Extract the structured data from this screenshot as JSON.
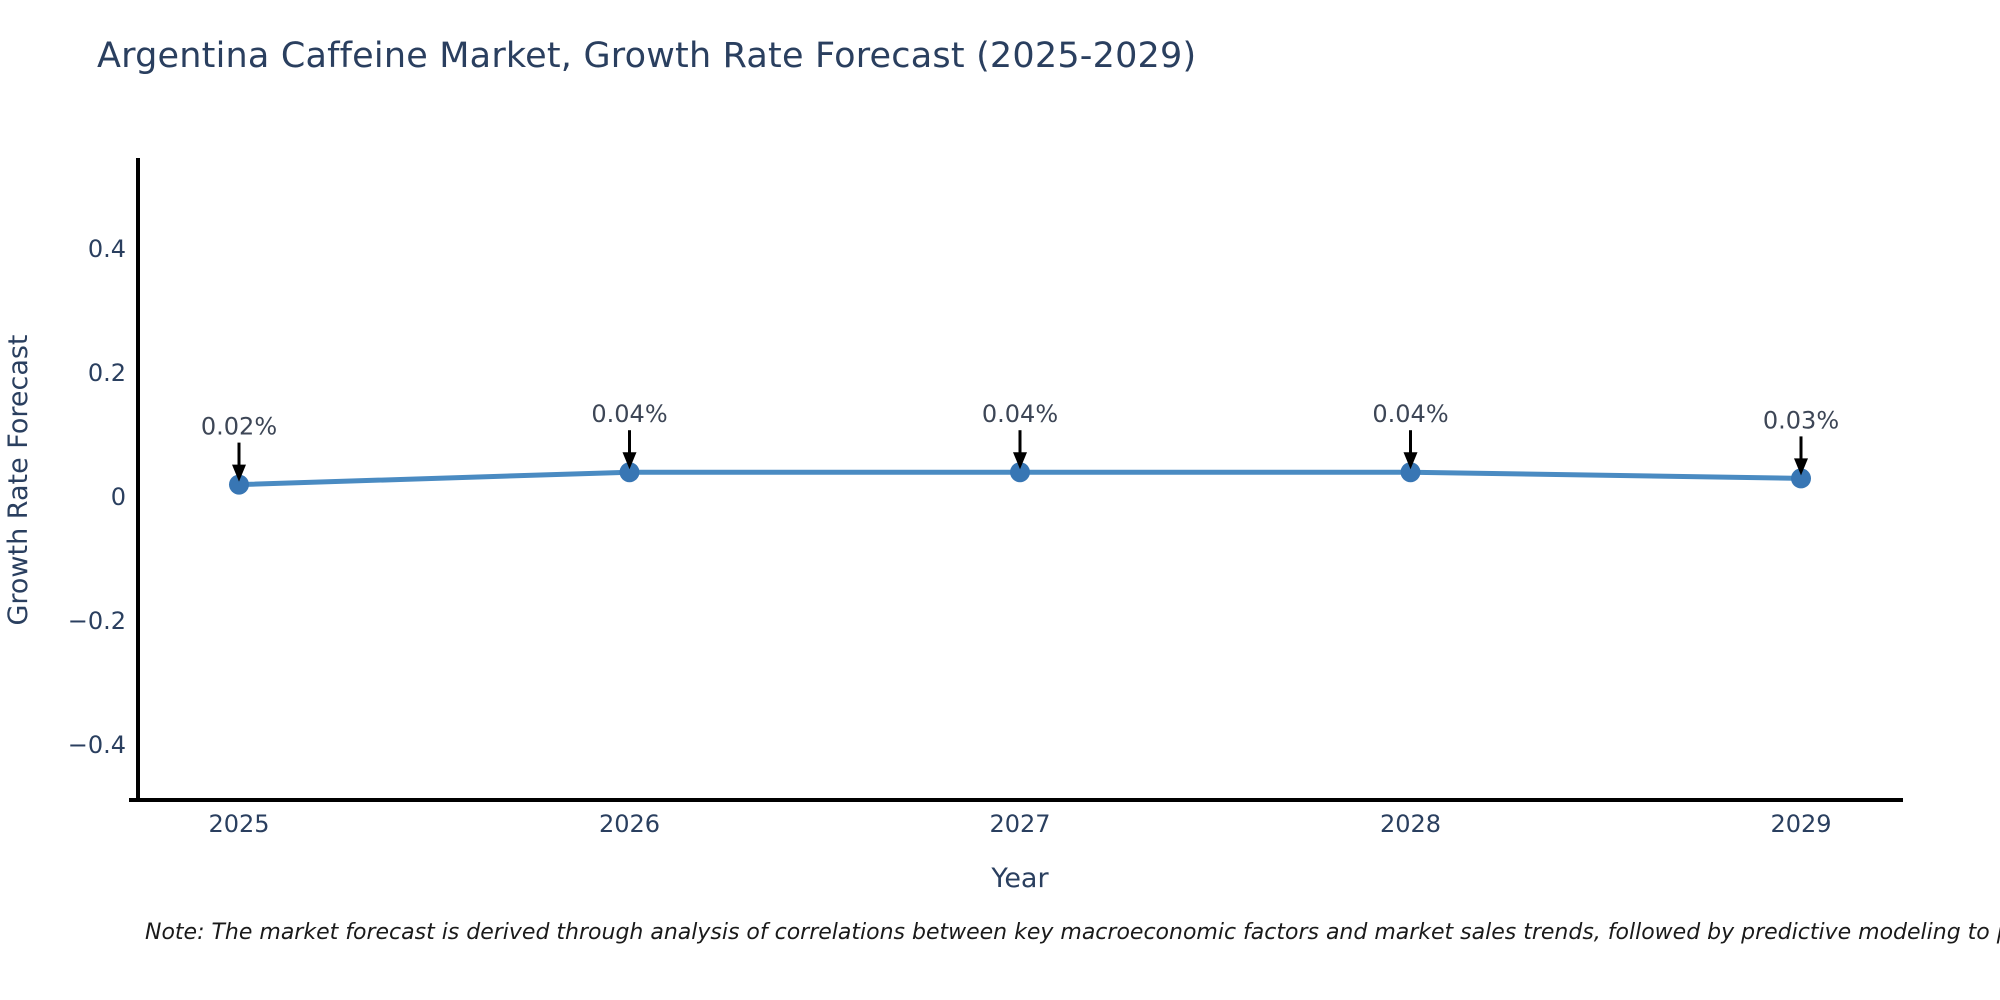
{
  "title": "Argentina Caffeine Market, Growth Rate Forecast (2025-2029)",
  "note": "Note: The market forecast is derived through analysis of correlations between key macroeconomic factors and market sales trends, followed by predictive modeling to project future sa",
  "chart_data": {
    "type": "line",
    "title": "Argentina Caffeine Market, Growth Rate Forecast (2025-2029)",
    "xlabel": "Year",
    "ylabel": "Growth Rate Forecast",
    "x": [
      2025,
      2026,
      2027,
      2028,
      2029
    ],
    "xtick_labels": [
      "2025",
      "2026",
      "2027",
      "2028",
      "2029"
    ],
    "series": [
      {
        "name": "Growth Rate Forecast",
        "values": [
          0.02,
          0.04,
          0.04,
          0.04,
          0.03
        ]
      }
    ],
    "point_labels": [
      "0.02%",
      "0.04%",
      "0.04%",
      "0.04%",
      "0.03%"
    ],
    "yticks": [
      0.4,
      0.2,
      0,
      -0.2,
      -0.4
    ],
    "ytick_labels": [
      "0.4",
      "0.2",
      "0",
      "−0.2",
      "−0.4"
    ],
    "ylim": [
      -0.5,
      0.55
    ],
    "grid": false,
    "legend": "none",
    "line_color": "#4a8bc2",
    "marker_color": "#3876b4",
    "arrow_color": "#000000",
    "text_color": "#2a3f5f",
    "annotation_color": "#3d4656",
    "axis_line_color": "#000000"
  }
}
